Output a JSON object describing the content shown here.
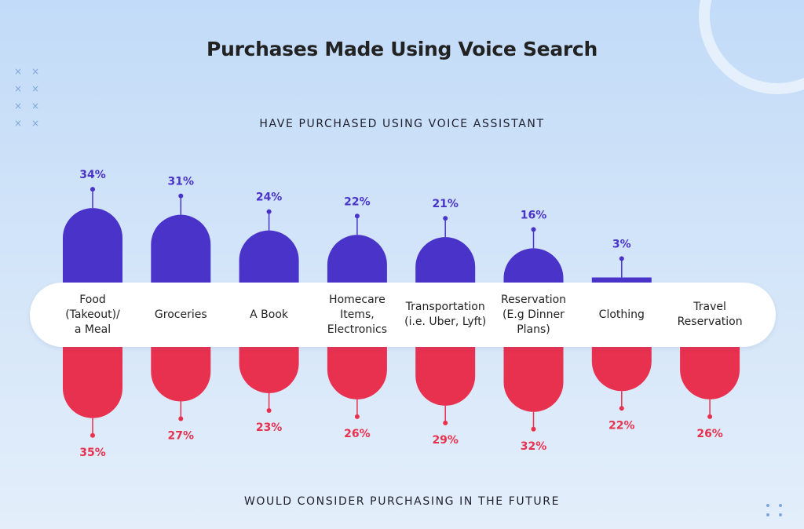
{
  "chart_data": {
    "type": "bar",
    "title": "Purchases Made Using Voice Search",
    "series": [
      {
        "name": "HAVE PURCHASED USING VOICE ASSISTANT",
        "values": [
          34,
          31,
          24,
          22,
          21,
          16,
          3,
          0
        ],
        "labels": [
          "34%",
          "31%",
          "24%",
          "22%",
          "21%",
          "16%",
          "3%",
          ""
        ],
        "color": "#4a33c9"
      },
      {
        "name": "WOULD CONSIDER PURCHASING IN THE FUTURE",
        "values": [
          35,
          27,
          23,
          26,
          29,
          32,
          22,
          26
        ],
        "labels": [
          "35%",
          "27%",
          "23%",
          "26%",
          "29%",
          "32%",
          "22%",
          "26%"
        ],
        "color": "#e8304f"
      }
    ],
    "categories": [
      "Food\n(Takeout)/\na Meal",
      "Groceries",
      "A Book",
      "Homecare\nItems,\nElectronics",
      "Transportation\n(i.e. Uber, Lyft)",
      "Reservation\n(E.g Dinner\nPlans)",
      "Clothing",
      "Travel\nReservation"
    ],
    "value_unit": "%",
    "grid": false,
    "legend": "none"
  }
}
